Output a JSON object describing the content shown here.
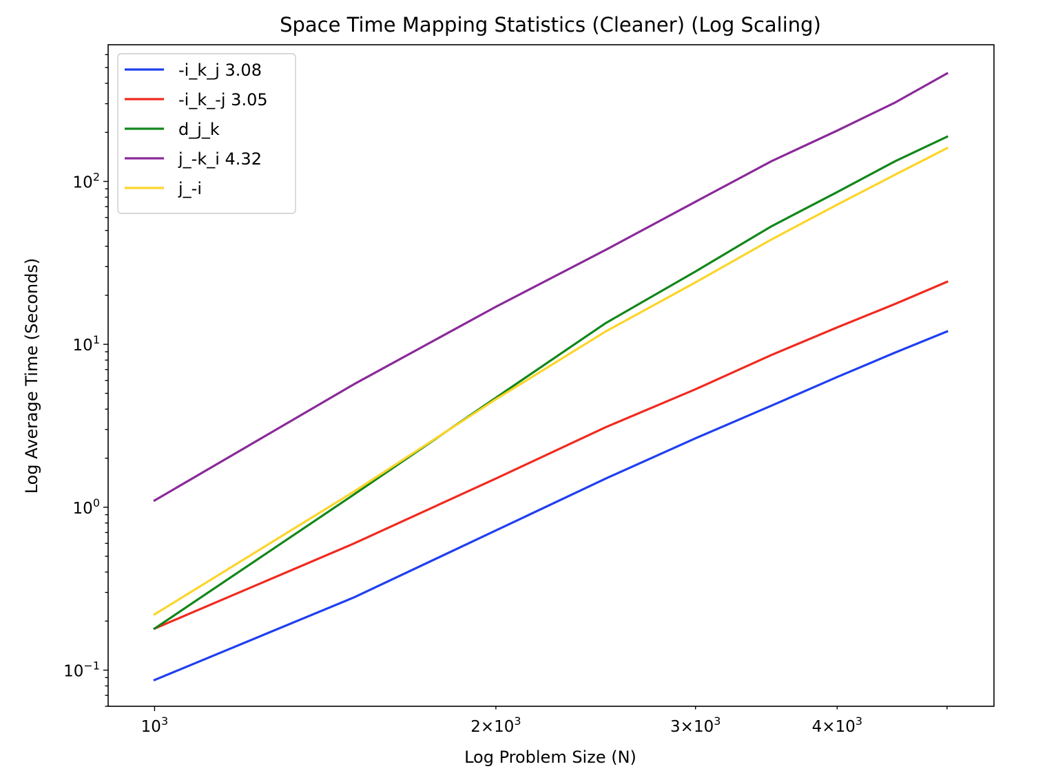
{
  "chart_data": {
    "type": "line",
    "title": "Space Time Mapping Statistics (Cleaner) (Log Scaling)",
    "xlabel": "Log Problem Size (N)",
    "ylabel": "Log Average Time (Seconds)",
    "xscale": "log",
    "yscale": "log",
    "xlim": [
      910,
      5500
    ],
    "ylim": [
      0.06,
      690
    ],
    "grid": false,
    "legend_position": "upper-left",
    "x": [
      1000,
      1500,
      2000,
      2500,
      3000,
      3500,
      4000,
      4500,
      5000
    ],
    "x_ticks": [
      {
        "value": 1000,
        "base": "10",
        "exp": "3",
        "mant": ""
      },
      {
        "value": 2000,
        "base": "10",
        "exp": "3",
        "mant": "2×"
      },
      {
        "value": 3000,
        "base": "10",
        "exp": "3",
        "mant": "3×"
      },
      {
        "value": 4000,
        "base": "10",
        "exp": "3",
        "mant": "4×"
      }
    ],
    "y_ticks": [
      {
        "value": 0.1,
        "base": "10",
        "exp": "−1"
      },
      {
        "value": 1,
        "base": "10",
        "exp": "0"
      },
      {
        "value": 10,
        "base": "10",
        "exp": "1"
      },
      {
        "value": 100,
        "base": "10",
        "exp": "2"
      }
    ],
    "series": [
      {
        "name": "-i_k_j  3.08",
        "color": "#1f3ff0",
        "values": [
          0.087,
          0.28,
          0.72,
          1.5,
          2.65,
          4.2,
          6.3,
          8.9,
          12.0
        ]
      },
      {
        "name": "-i_k_-j  3.05",
        "color": "#f02a1f",
        "values": [
          0.18,
          0.6,
          1.5,
          3.1,
          5.3,
          8.6,
          12.7,
          17.7,
          24.2
        ]
      },
      {
        "name": "d_j_k",
        "color": "#12871a",
        "values": [
          0.18,
          1.2,
          4.7,
          13.5,
          28.0,
          53.0,
          86.0,
          133.0,
          188.0
        ]
      },
      {
        "name": "j_-k_i  4.32",
        "color": "#8a2a99",
        "values": [
          1.1,
          5.7,
          17.0,
          38.0,
          75.0,
          133.0,
          205.0,
          305.0,
          460.0
        ]
      },
      {
        "name": "j_-i",
        "color": "#fcd52a",
        "values": [
          0.22,
          1.25,
          4.6,
          12.0,
          24.0,
          44.0,
          72.0,
          110.0,
          160.0
        ]
      }
    ]
  }
}
